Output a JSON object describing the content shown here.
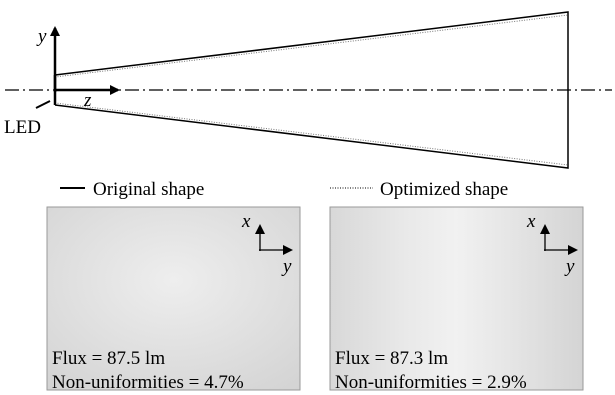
{
  "diagram": {
    "axis_labels": {
      "y": "y",
      "z": "z"
    },
    "source_label": "LED",
    "legend": [
      "Original shape",
      "Optimized shape"
    ],
    "panels": [
      {
        "axis_x": "x",
        "axis_y": "y",
        "flux": "Flux = 87.5 lm",
        "non_uniformity": "Non-uniformities = 4.7%"
      },
      {
        "axis_x": "x",
        "axis_y": "y",
        "flux": "Flux = 87.3 lm",
        "non_uniformity": "Non-uniformities = 2.9%"
      }
    ]
  }
}
